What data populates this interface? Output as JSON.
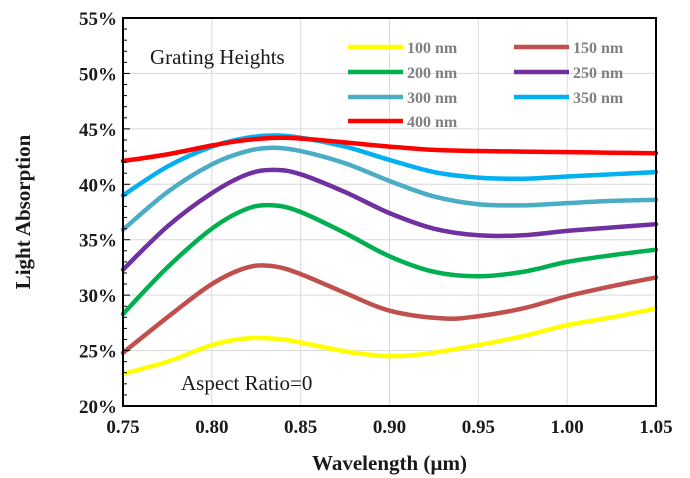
{
  "chart_data": {
    "type": "line",
    "title": "",
    "xlabel": "Wavelength (µm)",
    "ylabel": "Light Absorption",
    "xlim": [
      0.75,
      1.05
    ],
    "ylim": [
      20,
      55
    ],
    "grid": true,
    "x_ticks": [
      "0.75",
      "0.80",
      "0.85",
      "0.90",
      "0.95",
      "1.00",
      "1.05"
    ],
    "y_ticks": [
      "20%",
      "25%",
      "30%",
      "35%",
      "40%",
      "45%",
      "50%",
      "55%"
    ],
    "legend_title": "Grating Heights",
    "legend_position": "top-right",
    "annotation": "Aspect Ratio=0",
    "series": [
      {
        "name": "100 nm",
        "color": "#ffff00",
        "x": [
          0.75,
          0.775,
          0.8,
          0.82,
          0.84,
          0.86,
          0.88,
          0.9,
          0.92,
          0.95,
          0.975,
          1.0,
          1.025,
          1.05
        ],
        "y": [
          22.9,
          24.0,
          25.5,
          26.1,
          26.0,
          25.4,
          24.8,
          24.5,
          24.7,
          25.5,
          26.3,
          27.3,
          28.0,
          28.8
        ]
      },
      {
        "name": "150 nm",
        "color": "#c0504d",
        "x": [
          0.75,
          0.775,
          0.8,
          0.82,
          0.835,
          0.85,
          0.875,
          0.9,
          0.93,
          0.95,
          0.975,
          1.0,
          1.025,
          1.05
        ],
        "y": [
          24.8,
          28.0,
          31.0,
          32.5,
          32.6,
          31.9,
          30.2,
          28.6,
          27.9,
          28.1,
          28.8,
          29.9,
          30.8,
          31.6
        ]
      },
      {
        "name": "200 nm",
        "color": "#00b050",
        "x": [
          0.75,
          0.775,
          0.8,
          0.82,
          0.835,
          0.85,
          0.875,
          0.9,
          0.925,
          0.95,
          0.975,
          1.0,
          1.025,
          1.05
        ],
        "y": [
          28.3,
          32.5,
          36.0,
          37.8,
          38.1,
          37.5,
          35.6,
          33.5,
          32.1,
          31.7,
          32.1,
          33.0,
          33.6,
          34.1
        ]
      },
      {
        "name": "250 nm",
        "color": "#7030a0",
        "x": [
          0.75,
          0.775,
          0.8,
          0.82,
          0.835,
          0.85,
          0.875,
          0.9,
          0.925,
          0.95,
          0.975,
          1.0,
          1.025,
          1.05
        ],
        "y": [
          32.3,
          36.2,
          39.2,
          40.9,
          41.3,
          40.9,
          39.3,
          37.4,
          36.0,
          35.4,
          35.4,
          35.8,
          36.1,
          36.4
        ]
      },
      {
        "name": "300 nm",
        "color": "#4bacc6",
        "x": [
          0.75,
          0.775,
          0.8,
          0.82,
          0.835,
          0.85,
          0.875,
          0.9,
          0.925,
          0.95,
          0.975,
          1.0,
          1.025,
          1.05
        ],
        "y": [
          35.9,
          39.3,
          41.8,
          43.0,
          43.3,
          43.0,
          41.9,
          40.3,
          38.9,
          38.2,
          38.1,
          38.3,
          38.5,
          38.6
        ]
      },
      {
        "name": "350 nm",
        "color": "#00b0f0",
        "x": [
          0.75,
          0.775,
          0.8,
          0.82,
          0.835,
          0.85,
          0.875,
          0.9,
          0.925,
          0.95,
          0.975,
          1.0,
          1.025,
          1.05
        ],
        "y": [
          39.0,
          41.6,
          43.4,
          44.2,
          44.4,
          44.2,
          43.4,
          42.2,
          41.1,
          40.6,
          40.5,
          40.7,
          40.9,
          41.1
        ]
      },
      {
        "name": "400 nm",
        "color": "#ff0000",
        "x": [
          0.75,
          0.775,
          0.8,
          0.82,
          0.84,
          0.86,
          0.88,
          0.9,
          0.925,
          0.95,
          0.975,
          1.0,
          1.025,
          1.05
        ],
        "y": [
          42.1,
          42.7,
          43.5,
          44.0,
          44.2,
          44.0,
          43.7,
          43.4,
          43.1,
          43.0,
          42.95,
          42.9,
          42.85,
          42.8
        ]
      }
    ]
  }
}
